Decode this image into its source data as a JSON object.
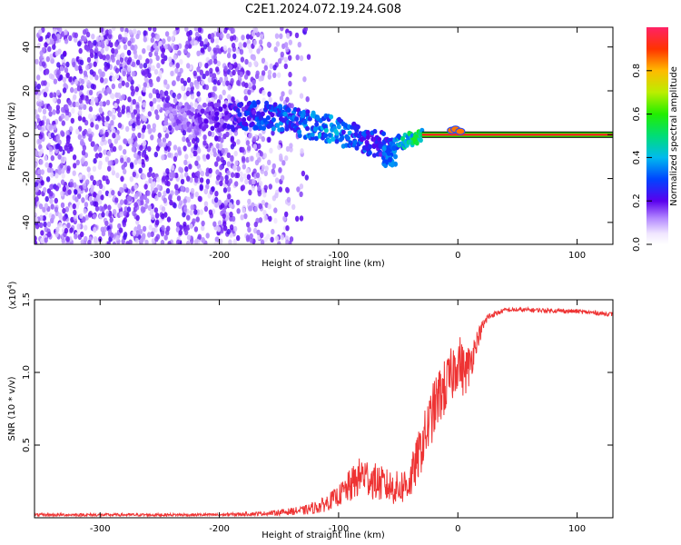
{
  "title": "C2E1.2024.072.19.24.G08",
  "colors": {
    "line": "#ee3333",
    "spectrogram_point": "#5a00ee",
    "ridge_low": "#3344ff",
    "ridge_mid": "#00ccaa",
    "ridge_high": "#ff2222"
  },
  "chart_data": [
    {
      "type": "heatmap",
      "xlabel": "Height of straight line (km)",
      "ylabel": "Frequency (Hz)",
      "xlim": [
        -355,
        130
      ],
      "ylim": [
        -50,
        49
      ],
      "x_ticks": [
        "-300",
        "-200",
        "-100",
        "0",
        "100"
      ],
      "x_tick_values": [
        -300,
        -200,
        -100,
        0,
        100
      ],
      "y_ticks": [
        "40",
        "20",
        "0",
        "-20",
        "-40"
      ],
      "y_tick_values": [
        40,
        20,
        0,
        -20,
        -40
      ],
      "colorbar": {
        "label": "Normalized spectral amplitude",
        "range": [
          0,
          1
        ],
        "ticks": [
          "0.0",
          "0.2",
          "0.4",
          "0.6",
          "0.8"
        ],
        "tick_values": [
          0.0,
          0.2,
          0.4,
          0.6,
          0.8
        ]
      },
      "ridge": {
        "x": [
          -240,
          -200,
          -170,
          -150,
          -130,
          -110,
          -90,
          -75,
          -60,
          -45,
          -30,
          -15,
          -5,
          0,
          5,
          30,
          60,
          100,
          130
        ],
        "y": [
          8,
          8,
          9,
          8,
          5,
          3,
          0,
          -3,
          -5,
          -3,
          0,
          0,
          2,
          1,
          0,
          0,
          0,
          0,
          0
        ],
        "amplitude": [
          0.15,
          0.2,
          0.3,
          0.35,
          0.35,
          0.4,
          0.35,
          0.3,
          0.3,
          0.5,
          0.6,
          0.75,
          0.9,
          0.85,
          0.9,
          0.95,
          0.95,
          0.95,
          0.95
        ]
      },
      "grid": false
    },
    {
      "type": "line",
      "xlabel": "Height of straight line (km)",
      "ylabel": "SNR (10 * v/v)",
      "y_scale_label": "(x10",
      "y_scale_exponent": "4",
      "y_scale_close": ")",
      "xlim": [
        -355,
        130
      ],
      "ylim": [
        0,
        1.5
      ],
      "x_ticks": [
        "-300",
        "-200",
        "-100",
        "0",
        "100"
      ],
      "x_tick_values": [
        -300,
        -200,
        -100,
        0,
        100
      ],
      "y_ticks": [
        "1.5",
        "1.0",
        "0.5"
      ],
      "y_tick_values": [
        1.5,
        1.0,
        0.5
      ],
      "series": [
        {
          "x": [
            -355,
            -300,
            -250,
            -200,
            -160,
            -130,
            -115,
            -100,
            -90,
            -80,
            -70,
            -60,
            -50,
            -40,
            -30,
            -20,
            -15,
            -10,
            -5,
            0,
            5,
            10,
            15,
            20,
            25,
            30,
            40,
            60,
            100,
            130
          ],
          "y": [
            0.02,
            0.02,
            0.02,
            0.02,
            0.03,
            0.05,
            0.08,
            0.15,
            0.22,
            0.3,
            0.25,
            0.22,
            0.2,
            0.25,
            0.5,
            0.75,
            0.85,
            0.9,
            0.98,
            1.1,
            1.0,
            1.05,
            1.2,
            1.3,
            1.38,
            1.4,
            1.43,
            1.43,
            1.42,
            1.4
          ],
          "noise": [
            0.01,
            0.01,
            0.01,
            0.01,
            0.015,
            0.03,
            0.05,
            0.07,
            0.12,
            0.14,
            0.13,
            0.12,
            0.12,
            0.14,
            0.18,
            0.2,
            0.2,
            0.2,
            0.2,
            0.2,
            0.18,
            0.15,
            0.08,
            0.05,
            0.03,
            0.02,
            0.015,
            0.015,
            0.015,
            0.015
          ]
        }
      ],
      "grid": false
    }
  ]
}
